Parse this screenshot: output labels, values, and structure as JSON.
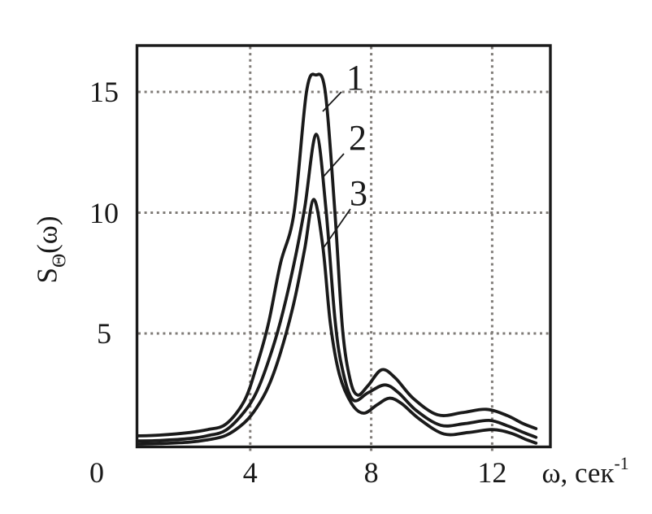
{
  "figure": {
    "origin_label": "0",
    "x_axis_label": {
      "base": "ω, сек",
      "superscript": "-1"
    },
    "y_axis_label": {
      "base": "S",
      "subscript": "Θ",
      "suffix": "(ω)"
    }
  },
  "chart_data": {
    "type": "line",
    "title": "",
    "xlabel": "ω, сек⁻¹",
    "ylabel": "S_Θ(ω)",
    "xlim": [
      0,
      14
    ],
    "ylim": [
      0,
      17
    ],
    "xticks": [
      4,
      8,
      12
    ],
    "yticks": [
      5,
      10,
      15
    ],
    "grid": "dotted, both axes, gray",
    "legend": "none; curves annotated with numbers 1, 2, 3",
    "line_color": "#1a1a1a",
    "grid_color": "#807c78",
    "series": [
      {
        "name": "1",
        "peak": {
          "x": 6.2,
          "y": 15.7
        },
        "points": [
          [
            0.3,
            0.76
          ],
          [
            1,
            0.79
          ],
          [
            2,
            0.9
          ],
          [
            2.6,
            1.02
          ],
          [
            3.2,
            1.25
          ],
          [
            3.8,
            2.2
          ],
          [
            4.2,
            3.6
          ],
          [
            4.6,
            5.4
          ],
          [
            5.0,
            7.9
          ],
          [
            5.45,
            10.0
          ],
          [
            5.86,
            15.0
          ],
          [
            6.17,
            15.7
          ],
          [
            6.48,
            15.0
          ],
          [
            6.8,
            10.0
          ],
          [
            7.05,
            5.2
          ],
          [
            7.3,
            3.1
          ],
          [
            7.55,
            2.45
          ],
          [
            7.9,
            2.85
          ],
          [
            8.35,
            3.5
          ],
          [
            8.8,
            3.15
          ],
          [
            9.4,
            2.3
          ],
          [
            10.2,
            1.63
          ],
          [
            11.0,
            1.72
          ],
          [
            11.8,
            1.86
          ],
          [
            12.5,
            1.6
          ],
          [
            13.0,
            1.28
          ],
          [
            13.45,
            1.06
          ]
        ]
      },
      {
        "name": "2",
        "peak": {
          "x": 6.2,
          "y": 13.3
        },
        "points": [
          [
            0.3,
            0.55
          ],
          [
            1,
            0.57
          ],
          [
            2,
            0.65
          ],
          [
            2.6,
            0.77
          ],
          [
            3.2,
            1.0
          ],
          [
            3.8,
            1.75
          ],
          [
            4.2,
            2.55
          ],
          [
            4.6,
            3.85
          ],
          [
            5.0,
            5.5
          ],
          [
            5.45,
            7.9
          ],
          [
            5.8,
            10.2
          ],
          [
            6.18,
            13.25
          ],
          [
            6.5,
            10.2
          ],
          [
            6.8,
            5.6
          ],
          [
            7.05,
            3.5
          ],
          [
            7.4,
            2.25
          ],
          [
            7.9,
            2.55
          ],
          [
            8.45,
            2.87
          ],
          [
            8.9,
            2.55
          ],
          [
            9.5,
            1.8
          ],
          [
            10.3,
            1.2
          ],
          [
            11.1,
            1.27
          ],
          [
            11.9,
            1.4
          ],
          [
            12.5,
            1.18
          ],
          [
            13.0,
            0.92
          ],
          [
            13.45,
            0.7
          ]
        ]
      },
      {
        "name": "3",
        "peak": {
          "x": 6.1,
          "y": 10.55
        },
        "points": [
          [
            0.3,
            0.42
          ],
          [
            1,
            0.44
          ],
          [
            2,
            0.5
          ],
          [
            2.6,
            0.6
          ],
          [
            3.2,
            0.78
          ],
          [
            3.8,
            1.3
          ],
          [
            4.2,
            1.9
          ],
          [
            4.6,
            2.8
          ],
          [
            5.0,
            4.2
          ],
          [
            5.45,
            6.3
          ],
          [
            5.8,
            8.5
          ],
          [
            6.1,
            10.55
          ],
          [
            6.4,
            8.6
          ],
          [
            6.65,
            5.4
          ],
          [
            6.95,
            3.3
          ],
          [
            7.35,
            2.1
          ],
          [
            7.75,
            1.7
          ],
          [
            8.2,
            2.05
          ],
          [
            8.6,
            2.32
          ],
          [
            9.0,
            2.1
          ],
          [
            9.6,
            1.45
          ],
          [
            10.4,
            0.84
          ],
          [
            11.2,
            0.9
          ],
          [
            12.0,
            1.02
          ],
          [
            12.6,
            0.88
          ],
          [
            13.1,
            0.62
          ],
          [
            13.45,
            0.46
          ]
        ]
      }
    ]
  }
}
